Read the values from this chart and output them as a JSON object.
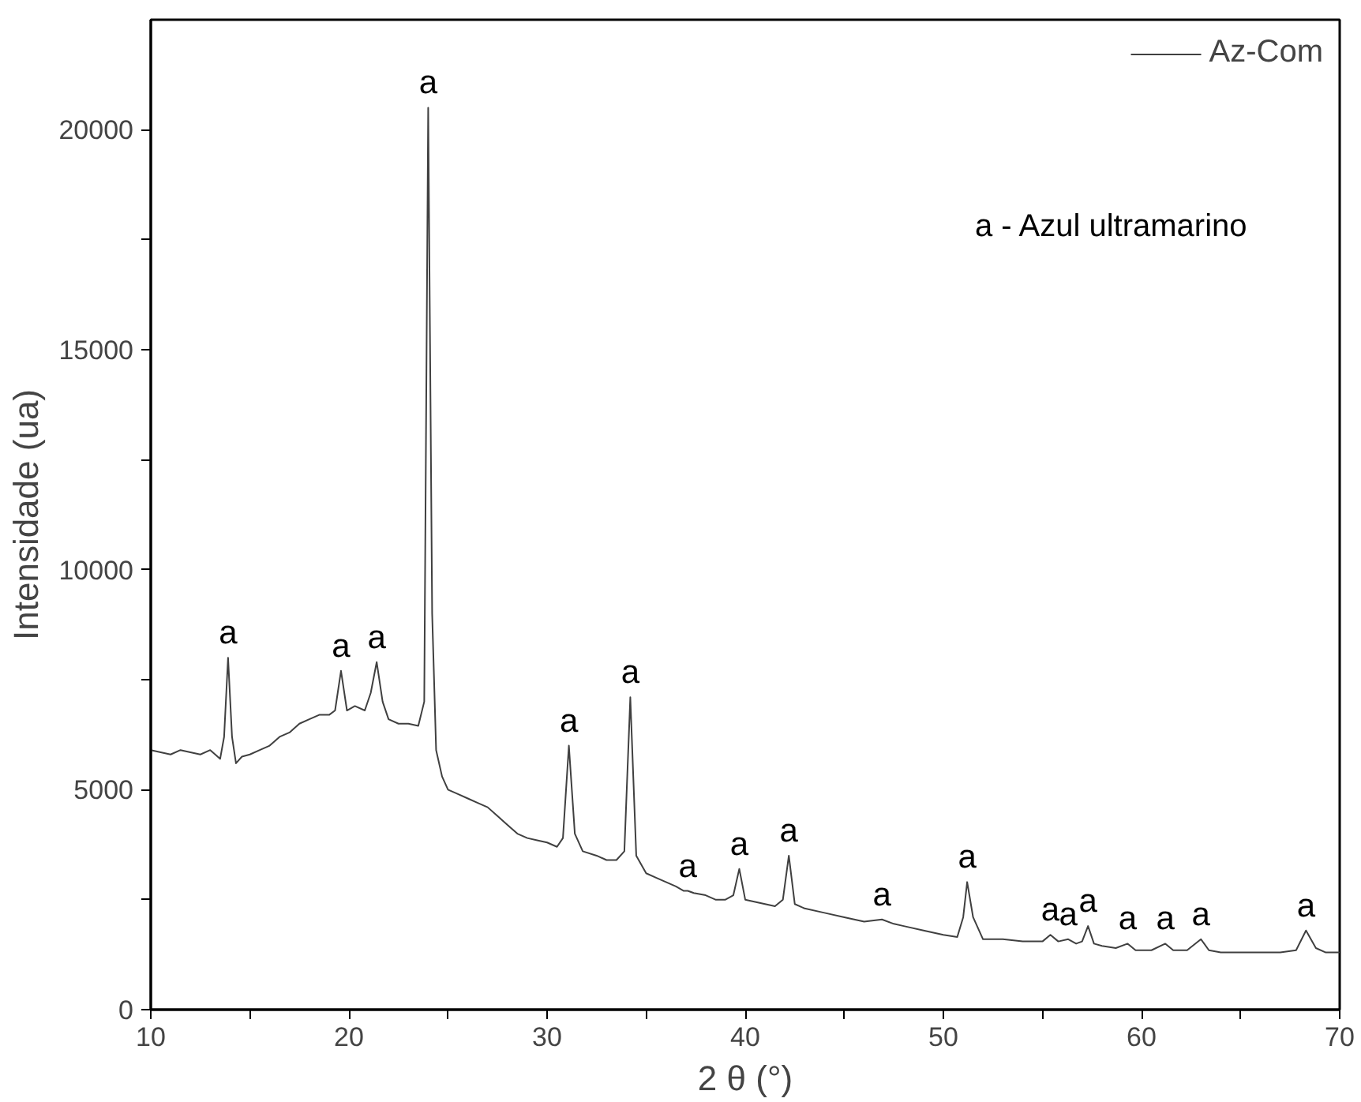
{
  "chart_data": {
    "type": "line",
    "xlabel": "2 θ (°)",
    "ylabel": "Intensidade (ua)",
    "xlim": [
      10,
      70
    ],
    "ylim": [
      0,
      22500
    ],
    "xticks": [
      10,
      {
        "value": 15,
        "label": null
      },
      20,
      {
        "value": 25,
        "label": null
      },
      30,
      {
        "value": 35,
        "label": null
      },
      40,
      {
        "value": 45,
        "label": null
      },
      50,
      {
        "value": 55,
        "label": null
      },
      60,
      {
        "value": 65,
        "label": null
      },
      70
    ],
    "yticks": [
      0,
      {
        "value": 2500,
        "label": null
      },
      5000,
      {
        "value": 7500,
        "label": null
      },
      10000,
      {
        "value": 12500,
        "label": null
      },
      15000,
      {
        "value": 17500,
        "label": null
      },
      20000
    ],
    "grid": false,
    "legend": "top right",
    "marker": "none",
    "line_style": "solid",
    "series": [
      {
        "name": "Az-Com",
        "color": "#404040",
        "x": [
          10,
          10.5,
          11,
          11.5,
          12,
          12.5,
          13,
          13.5,
          13.7,
          13.9,
          14.1,
          14.3,
          14.6,
          15,
          15.5,
          16,
          16.5,
          17,
          17.5,
          18,
          18.5,
          19,
          19.3,
          19.6,
          19.9,
          20.3,
          20.8,
          21.1,
          21.4,
          21.7,
          22,
          22.5,
          23,
          23.5,
          23.8,
          24.0,
          24.2,
          24.4,
          24.7,
          25,
          25.5,
          26,
          26.5,
          27,
          27.5,
          28,
          28.5,
          29,
          29.5,
          30,
          30.5,
          30.8,
          31.1,
          31.4,
          31.8,
          32.5,
          33,
          33.5,
          33.9,
          34.2,
          34.5,
          35,
          35.5,
          36,
          36.5,
          36.9,
          37.1,
          37.4,
          38,
          38.5,
          39,
          39.4,
          39.7,
          40,
          40.5,
          41,
          41.5,
          41.9,
          42.2,
          42.5,
          43,
          44,
          45,
          46,
          46.9,
          47.5,
          48,
          49,
          50,
          50.7,
          51.0,
          51.2,
          51.5,
          52,
          53,
          54,
          55,
          55.4,
          55.8,
          56.3,
          56.7,
          57.0,
          57.3,
          57.6,
          58,
          58.7,
          59.3,
          59.7,
          60.5,
          61.2,
          61.6,
          62.3,
          63.0,
          63.4,
          64,
          65,
          66,
          67,
          67.8,
          68.3,
          68.8,
          69.3,
          70
        ],
        "values": [
          5900,
          5850,
          5800,
          5900,
          5850,
          5800,
          5900,
          5700,
          6200,
          8000,
          6200,
          5600,
          5750,
          5800,
          5900,
          6000,
          6200,
          6300,
          6500,
          6600,
          6700,
          6700,
          6800,
          7700,
          6800,
          6900,
          6800,
          7200,
          7900,
          7000,
          6600,
          6500,
          6500,
          6450,
          7000,
          20500,
          9000,
          5900,
          5300,
          5000,
          4900,
          4800,
          4700,
          4600,
          4400,
          4200,
          4000,
          3900,
          3850,
          3800,
          3700,
          3900,
          6000,
          4000,
          3600,
          3500,
          3400,
          3400,
          3600,
          7100,
          3500,
          3100,
          3000,
          2900,
          2800,
          2700,
          2700,
          2650,
          2600,
          2500,
          2500,
          2600,
          3200,
          2500,
          2450,
          2400,
          2350,
          2500,
          3500,
          2400,
          2300,
          2200,
          2100,
          2000,
          2050,
          1950,
          1900,
          1800,
          1700,
          1650,
          2100,
          2900,
          2100,
          1600,
          1600,
          1550,
          1550,
          1700,
          1550,
          1600,
          1500,
          1550,
          1900,
          1500,
          1450,
          1400,
          1500,
          1350,
          1350,
          1500,
          1350,
          1350,
          1600,
          1350,
          1300,
          1300,
          1300,
          1300,
          1350,
          1800,
          1400,
          1300,
          1300
        ]
      }
    ],
    "annotations": [
      {
        "text": "a",
        "x": 13.9,
        "y": 8000
      },
      {
        "text": "a",
        "x": 19.6,
        "y": 7700
      },
      {
        "text": "a",
        "x": 21.4,
        "y": 7900
      },
      {
        "text": "a",
        "x": 24.0,
        "y": 20500
      },
      {
        "text": "a",
        "x": 31.1,
        "y": 6000
      },
      {
        "text": "a",
        "x": 34.2,
        "y": 7100
      },
      {
        "text": "a",
        "x": 37.1,
        "y": 2700
      },
      {
        "text": "a",
        "x": 39.7,
        "y": 3200
      },
      {
        "text": "a",
        "x": 42.2,
        "y": 3500
      },
      {
        "text": "a",
        "x": 46.9,
        "y": 2050
      },
      {
        "text": "a",
        "x": 51.2,
        "y": 2900
      },
      {
        "text": "a",
        "x": 55.4,
        "y": 1700
      },
      {
        "text": "a",
        "x": 56.3,
        "y": 1600
      },
      {
        "text": "a",
        "x": 57.3,
        "y": 1900
      },
      {
        "text": "a",
        "x": 59.3,
        "y": 1500
      },
      {
        "text": "a",
        "x": 61.2,
        "y": 1500
      },
      {
        "text": "a",
        "x": 63.0,
        "y": 1600
      },
      {
        "text": "a",
        "x": 68.3,
        "y": 1800
      },
      "a - Azul ultramarino"
    ]
  }
}
